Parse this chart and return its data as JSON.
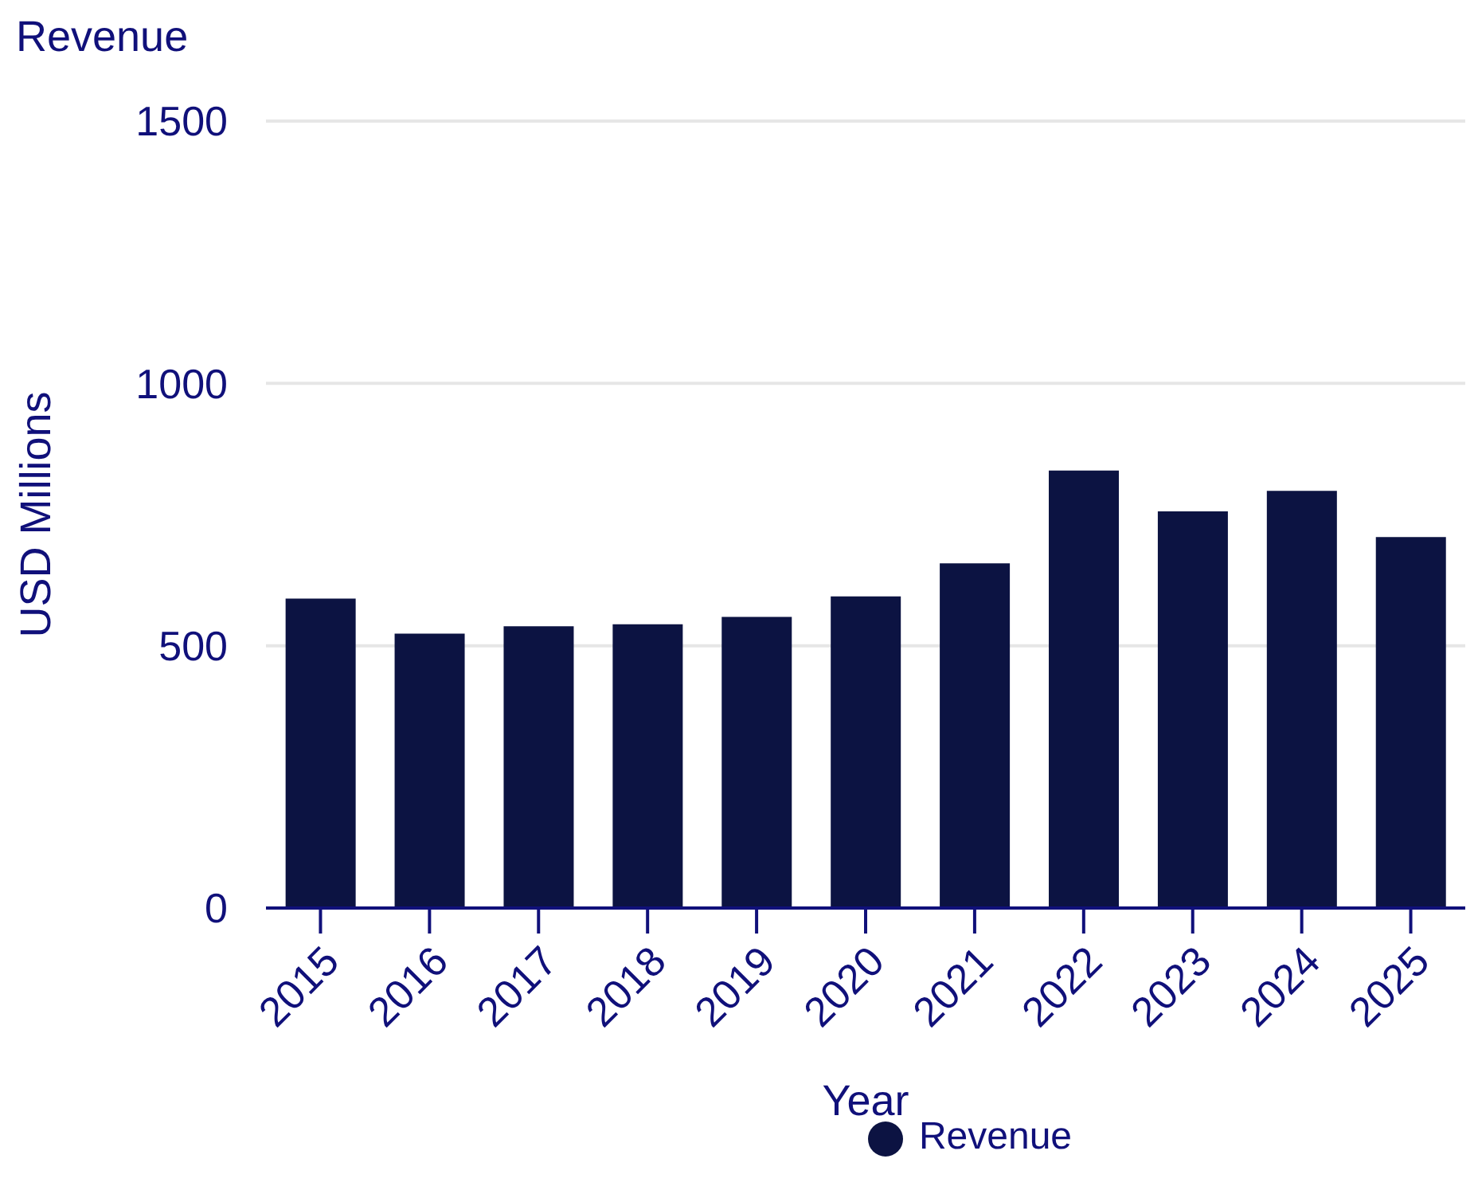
{
  "chart_data": {
    "type": "bar",
    "title": "Revenue",
    "xlabel": "Year",
    "ylabel": "USD Millions",
    "categories": [
      "2015",
      "2016",
      "2017",
      "2018",
      "2019",
      "2020",
      "2021",
      "2022",
      "2023",
      "2024",
      "2025"
    ],
    "series": [
      {
        "name": "Revenue",
        "color": "#0c1342",
        "values": [
          590,
          523,
          537,
          541,
          555,
          594,
          657,
          834,
          756,
          795,
          707
        ]
      }
    ],
    "ylim": [
      0,
      1500
    ],
    "yticks": [
      0,
      500,
      1000,
      1500
    ],
    "grid": "y",
    "legend": "bottom"
  }
}
